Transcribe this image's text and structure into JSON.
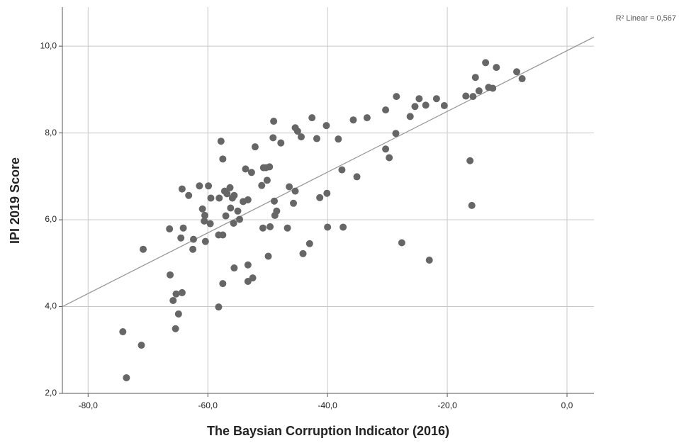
{
  "chart_data": {
    "type": "scatter",
    "xlabel": "The Baysian Corruption Indicator (2016)",
    "ylabel": "IPI 2019 Score",
    "annotation": "R² Linear = 0,567",
    "color": "#666666",
    "grid": true,
    "xlim": [
      -84.3,
      4.5
    ],
    "ylim": [
      2,
      10.9
    ],
    "xticks": [
      {
        "value": -80,
        "label": "-80,0"
      },
      {
        "value": -60,
        "label": "-60,0"
      },
      {
        "value": -40,
        "label": "-40,0"
      },
      {
        "value": -20,
        "label": "-20,0"
      },
      {
        "value": 0,
        "label": "0,0"
      }
    ],
    "yticks": [
      {
        "value": 2,
        "label": "2,0"
      },
      {
        "value": 4,
        "label": "4,0"
      },
      {
        "value": 6,
        "label": "6,0"
      },
      {
        "value": 8,
        "label": "8,0"
      },
      {
        "value": 10,
        "label": "10,0"
      }
    ],
    "x": [
      -74.2,
      -73.6,
      -71.1,
      -70.8,
      -66.4,
      -66.3,
      -65.8,
      -65.3,
      -65.4,
      -64.9,
      -64.5,
      -64.3,
      -64.1,
      -64.3,
      -63.2,
      -62.5,
      -62.4,
      -61.4,
      -60.9,
      -60.6,
      -60.5,
      -60.4,
      -59.9,
      -59.6,
      -59.5,
      -58.2,
      -58.1,
      -57.8,
      -57.5,
      -57.5,
      -57.5,
      -58.2,
      -57.2,
      -57.0,
      -56.8,
      -56.3,
      -56.2,
      -55.7,
      -55.9,
      -55.6,
      -55.6,
      -55.0,
      -54.7,
      -54.1,
      -53.7,
      -53.3,
      -53.3,
      -53.3,
      -52.7,
      -52.5,
      -52.1,
      -51.0,
      -50.8,
      -50.7,
      -50.3,
      -50.1,
      -49.7,
      -49.9,
      -49.6,
      -49.1,
      -49.0,
      -48.9,
      -48.8,
      -48.5,
      -47.8,
      -46.7,
      -46.4,
      -45.7,
      -45.4,
      -45.4,
      -45.0,
      -44.4,
      -44.1,
      -43.0,
      -42.6,
      -41.8,
      -41.3,
      -40.1,
      -40.2,
      -40.0,
      -38.2,
      -37.6,
      -37.4,
      -35.7,
      -35.1,
      -33.4,
      -30.3,
      -30.3,
      -29.7,
      -28.6,
      -28.5,
      -27.6,
      -26.2,
      -25.4,
      -24.7,
      -23.6,
      -23.0,
      -21.8,
      -20.5,
      -16.9,
      -16.2,
      -15.9,
      -15.7,
      -15.3,
      -14.7,
      -13.6,
      -13.1,
      -12.4,
      -11.8,
      -8.4,
      -7.5
    ],
    "y": [
      3.42,
      2.36,
      3.11,
      5.32,
      5.79,
      4.73,
      4.14,
      4.29,
      3.49,
      3.83,
      5.58,
      4.32,
      5.81,
      6.71,
      6.56,
      5.32,
      5.55,
      6.78,
      6.25,
      5.97,
      6.1,
      5.5,
      6.78,
      5.91,
      6.5,
      5.65,
      6.5,
      7.81,
      7.4,
      5.65,
      4.53,
      3.99,
      6.66,
      6.09,
      6.6,
      6.74,
      6.27,
      5.92,
      6.5,
      6.56,
      4.89,
      6.2,
      6.01,
      6.42,
      7.17,
      4.96,
      4.58,
      6.46,
      7.09,
      4.66,
      7.68,
      6.79,
      5.81,
      7.2,
      7.2,
      6.91,
      7.22,
      5.16,
      5.84,
      7.89,
      8.27,
      6.43,
      6.1,
      6.2,
      7.77,
      5.81,
      6.76,
      6.38,
      6.66,
      8.12,
      8.04,
      7.91,
      5.22,
      5.45,
      8.35,
      7.87,
      6.51,
      6.61,
      8.17,
      5.83,
      7.86,
      7.15,
      5.83,
      8.3,
      6.99,
      8.35,
      7.63,
      8.53,
      7.43,
      7.99,
      8.84,
      5.47,
      8.38,
      8.61,
      8.79,
      8.64,
      5.07,
      8.79,
      8.63,
      8.85,
      7.36,
      6.33,
      8.84,
      9.28,
      8.97,
      9.62,
      9.05,
      9.03,
      9.51,
      9.41,
      9.25
    ],
    "fit_line": {
      "color": "#999999",
      "x": [
        -84.3,
        4.5
      ],
      "y": [
        4.0,
        10.21
      ]
    }
  }
}
